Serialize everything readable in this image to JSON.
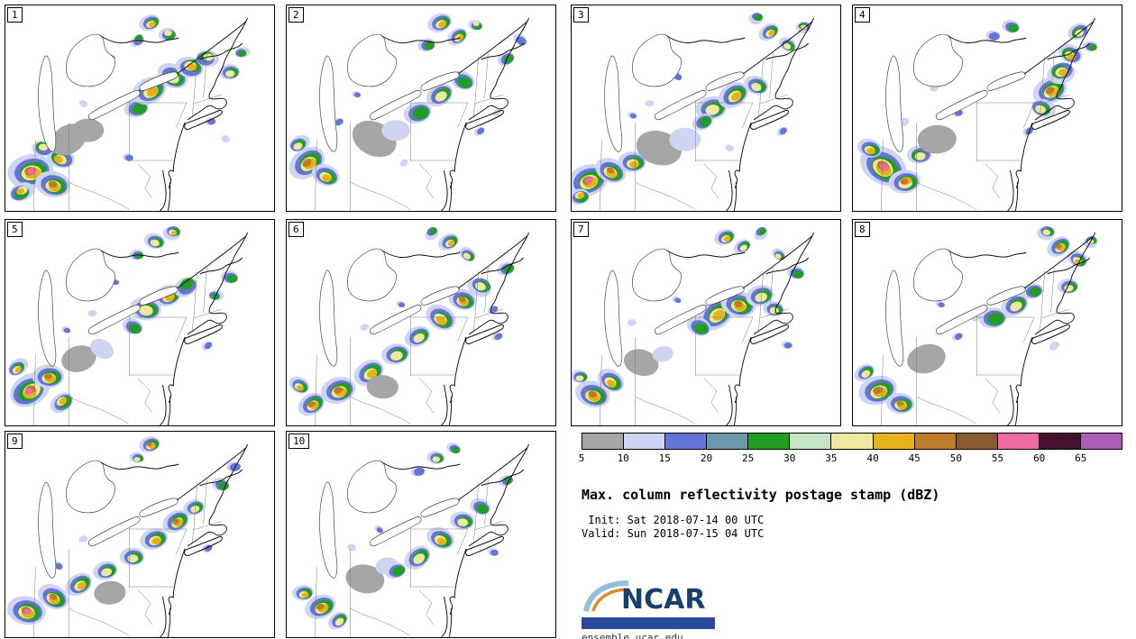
{
  "legend": {
    "title": "Max. column reflectivity postage stamp (dBZ)",
    "init_line": " Init: Sat 2018-07-14 00 UTC",
    "valid_line": "Valid: Sun 2018-07-15 04 UTC",
    "ticks": [
      "5",
      "10",
      "15",
      "20",
      "25",
      "30",
      "35",
      "40",
      "45",
      "50",
      "55",
      "60",
      "65"
    ],
    "colors": [
      "#a6a6a6",
      "#cdd5f2",
      "#6474d8",
      "#6d97a8",
      "#1f9e1f",
      "#c4e4c4",
      "#f0e8a0",
      "#e7b219",
      "#bc7c28",
      "#8a5a30",
      "#f06ba2",
      "#45112e",
      "#a85fb4"
    ]
  },
  "logo": {
    "text": "NCAR",
    "url": "ensemble.ucar.edu",
    "brand_blue": "#17406e",
    "bar_blue": "#2b4a9b"
  },
  "panels": [
    {
      "id": "1",
      "storms": [
        [
          30,
          185,
          26,
          10
        ],
        [
          55,
          200,
          20,
          8
        ],
        [
          18,
          207,
          14,
          7
        ],
        [
          62,
          170,
          16,
          7
        ],
        [
          42,
          158,
          12,
          6
        ],
        [
          72,
          150,
          22,
          0
        ],
        [
          95,
          140,
          18,
          0
        ],
        [
          150,
          115,
          14,
          4
        ],
        [
          165,
          95,
          20,
          7
        ],
        [
          190,
          80,
          18,
          6
        ],
        [
          210,
          68,
          16,
          7
        ],
        [
          228,
          58,
          13,
          6
        ],
        [
          165,
          20,
          12,
          7
        ],
        [
          185,
          32,
          10,
          6
        ],
        [
          150,
          38,
          8,
          4
        ],
        [
          255,
          75,
          12,
          6
        ],
        [
          268,
          52,
          8,
          4
        ],
        [
          120,
          60,
          6,
          2
        ],
        [
          105,
          82,
          5,
          1
        ],
        [
          232,
          130,
          6,
          2
        ],
        [
          250,
          150,
          5,
          1
        ],
        [
          140,
          170,
          6,
          2
        ],
        [
          88,
          108,
          5,
          1
        ]
      ]
    },
    {
      "id": "2",
      "storms": [
        [
          25,
          175,
          22,
          8
        ],
        [
          45,
          190,
          16,
          7
        ],
        [
          14,
          155,
          12,
          6
        ],
        [
          100,
          150,
          26,
          0
        ],
        [
          125,
          140,
          16,
          1
        ],
        [
          150,
          120,
          16,
          4
        ],
        [
          175,
          100,
          16,
          6
        ],
        [
          200,
          85,
          14,
          5
        ],
        [
          175,
          20,
          14,
          7
        ],
        [
          195,
          35,
          12,
          7
        ],
        [
          160,
          45,
          10,
          4
        ],
        [
          215,
          22,
          8,
          6
        ],
        [
          250,
          60,
          10,
          4
        ],
        [
          265,
          40,
          8,
          2
        ],
        [
          80,
          100,
          5,
          2
        ],
        [
          220,
          140,
          6,
          2
        ],
        [
          240,
          120,
          5,
          1
        ],
        [
          60,
          130,
          6,
          2
        ],
        [
          135,
          175,
          5,
          1
        ],
        [
          100,
          70,
          5,
          1
        ]
      ]
    },
    {
      "id": "3",
      "storms": [
        [
          20,
          195,
          24,
          10
        ],
        [
          45,
          185,
          18,
          8
        ],
        [
          70,
          175,
          16,
          7
        ],
        [
          10,
          212,
          12,
          7
        ],
        [
          100,
          160,
          26,
          0
        ],
        [
          130,
          148,
          18,
          1
        ],
        [
          160,
          115,
          18,
          6
        ],
        [
          185,
          100,
          18,
          7
        ],
        [
          210,
          90,
          14,
          6
        ],
        [
          150,
          130,
          12,
          4
        ],
        [
          225,
          30,
          12,
          7
        ],
        [
          245,
          45,
          10,
          6
        ],
        [
          210,
          14,
          8,
          4
        ],
        [
          262,
          24,
          8,
          6
        ],
        [
          120,
          80,
          6,
          2
        ],
        [
          90,
          110,
          5,
          1
        ],
        [
          240,
          140,
          6,
          2
        ],
        [
          70,
          122,
          5,
          2
        ],
        [
          180,
          160,
          5,
          1
        ]
      ]
    },
    {
      "id": "4",
      "storms": [
        [
          35,
          180,
          28,
          10
        ],
        [
          60,
          196,
          18,
          8
        ],
        [
          20,
          160,
          14,
          7
        ],
        [
          76,
          166,
          14,
          6
        ],
        [
          96,
          150,
          22,
          0
        ],
        [
          225,
          95,
          20,
          8
        ],
        [
          236,
          74,
          16,
          7
        ],
        [
          246,
          55,
          14,
          7
        ],
        [
          214,
          115,
          14,
          6
        ],
        [
          256,
          30,
          12,
          6
        ],
        [
          270,
          46,
          8,
          4
        ],
        [
          180,
          25,
          10,
          4
        ],
        [
          160,
          35,
          8,
          2
        ],
        [
          120,
          120,
          6,
          2
        ],
        [
          142,
          100,
          5,
          1
        ],
        [
          200,
          140,
          6,
          2
        ],
        [
          92,
          92,
          5,
          1
        ],
        [
          60,
          130,
          6,
          1
        ]
      ]
    },
    {
      "id": "5",
      "storms": [
        [
          28,
          190,
          24,
          10
        ],
        [
          50,
          175,
          18,
          8
        ],
        [
          14,
          165,
          12,
          7
        ],
        [
          65,
          202,
          14,
          7
        ],
        [
          85,
          155,
          20,
          0
        ],
        [
          110,
          145,
          14,
          1
        ],
        [
          160,
          100,
          18,
          6
        ],
        [
          185,
          85,
          16,
          7
        ],
        [
          205,
          73,
          14,
          5
        ],
        [
          145,
          120,
          12,
          4
        ],
        [
          170,
          25,
          12,
          6
        ],
        [
          190,
          14,
          10,
          7
        ],
        [
          150,
          40,
          8,
          4
        ],
        [
          255,
          65,
          10,
          5
        ],
        [
          238,
          85,
          8,
          4
        ],
        [
          125,
          70,
          5,
          2
        ],
        [
          230,
          140,
          6,
          2
        ],
        [
          100,
          105,
          5,
          1
        ],
        [
          70,
          122,
          5,
          2
        ]
      ]
    },
    {
      "id": "6",
      "storms": [
        [
          30,
          205,
          16,
          9
        ],
        [
          15,
          185,
          12,
          7
        ],
        [
          60,
          190,
          20,
          8
        ],
        [
          95,
          170,
          18,
          7
        ],
        [
          125,
          150,
          16,
          6
        ],
        [
          150,
          130,
          15,
          6
        ],
        [
          175,
          110,
          18,
          7
        ],
        [
          200,
          90,
          16,
          8
        ],
        [
          220,
          74,
          14,
          6
        ],
        [
          110,
          186,
          18,
          0
        ],
        [
          185,
          25,
          12,
          7
        ],
        [
          205,
          40,
          10,
          6
        ],
        [
          165,
          14,
          8,
          4
        ],
        [
          250,
          55,
          10,
          4
        ],
        [
          240,
          130,
          6,
          2
        ],
        [
          90,
          120,
          5,
          1
        ],
        [
          130,
          95,
          5,
          2
        ],
        [
          235,
          100,
          6,
          2
        ]
      ]
    },
    {
      "id": "7",
      "storms": [
        [
          165,
          105,
          22,
          7
        ],
        [
          190,
          95,
          20,
          8
        ],
        [
          215,
          85,
          16,
          6
        ],
        [
          145,
          120,
          14,
          5
        ],
        [
          230,
          100,
          12,
          6
        ],
        [
          25,
          195,
          20,
          9
        ],
        [
          45,
          180,
          16,
          7
        ],
        [
          10,
          175,
          10,
          6
        ],
        [
          80,
          160,
          20,
          0
        ],
        [
          105,
          150,
          12,
          1
        ],
        [
          175,
          20,
          12,
          7
        ],
        [
          195,
          30,
          10,
          6
        ],
        [
          215,
          14,
          8,
          4
        ],
        [
          235,
          40,
          8,
          6
        ],
        [
          255,
          60,
          10,
          4
        ],
        [
          120,
          90,
          5,
          2
        ],
        [
          245,
          140,
          6,
          2
        ],
        [
          70,
          115,
          5,
          1
        ]
      ]
    },
    {
      "id": "8",
      "storms": [
        [
          30,
          190,
          22,
          9
        ],
        [
          55,
          205,
          16,
          8
        ],
        [
          15,
          170,
          12,
          6
        ],
        [
          85,
          155,
          22,
          0
        ],
        [
          160,
          110,
          16,
          5
        ],
        [
          185,
          95,
          16,
          6
        ],
        [
          205,
          80,
          12,
          5
        ],
        [
          235,
          30,
          14,
          8
        ],
        [
          255,
          45,
          12,
          7
        ],
        [
          220,
          14,
          10,
          6
        ],
        [
          270,
          24,
          8,
          6
        ],
        [
          245,
          75,
          12,
          6
        ],
        [
          120,
          130,
          6,
          2
        ],
        [
          140,
          110,
          5,
          1
        ],
        [
          100,
          95,
          5,
          2
        ],
        [
          230,
          140,
          6,
          1
        ]
      ]
    },
    {
      "id": "9",
      "storms": [
        [
          25,
          200,
          22,
          10
        ],
        [
          55,
          185,
          18,
          8
        ],
        [
          85,
          170,
          16,
          7
        ],
        [
          115,
          155,
          14,
          6
        ],
        [
          145,
          140,
          14,
          6
        ],
        [
          170,
          120,
          16,
          7
        ],
        [
          195,
          100,
          16,
          8
        ],
        [
          215,
          85,
          12,
          6
        ],
        [
          165,
          15,
          12,
          9
        ],
        [
          150,
          30,
          8,
          6
        ],
        [
          120,
          180,
          18,
          0
        ],
        [
          245,
          60,
          10,
          4
        ],
        [
          260,
          40,
          8,
          2
        ],
        [
          230,
          130,
          6,
          2
        ],
        [
          90,
          120,
          5,
          1
        ],
        [
          60,
          150,
          6,
          2
        ]
      ]
    },
    {
      "id": "10",
      "storms": [
        [
          40,
          195,
          18,
          8
        ],
        [
          20,
          180,
          12,
          7
        ],
        [
          60,
          210,
          12,
          6
        ],
        [
          90,
          165,
          22,
          0
        ],
        [
          115,
          150,
          13,
          1
        ],
        [
          125,
          155,
          12,
          5
        ],
        [
          150,
          140,
          16,
          6
        ],
        [
          175,
          120,
          16,
          7
        ],
        [
          200,
          100,
          14,
          6
        ],
        [
          220,
          85,
          12,
          5
        ],
        [
          170,
          30,
          10,
          6
        ],
        [
          190,
          20,
          8,
          4
        ],
        [
          150,
          45,
          8,
          2
        ],
        [
          250,
          55,
          8,
          4
        ],
        [
          235,
          135,
          6,
          2
        ],
        [
          75,
          130,
          5,
          1
        ],
        [
          105,
          110,
          5,
          2
        ]
      ]
    }
  ]
}
